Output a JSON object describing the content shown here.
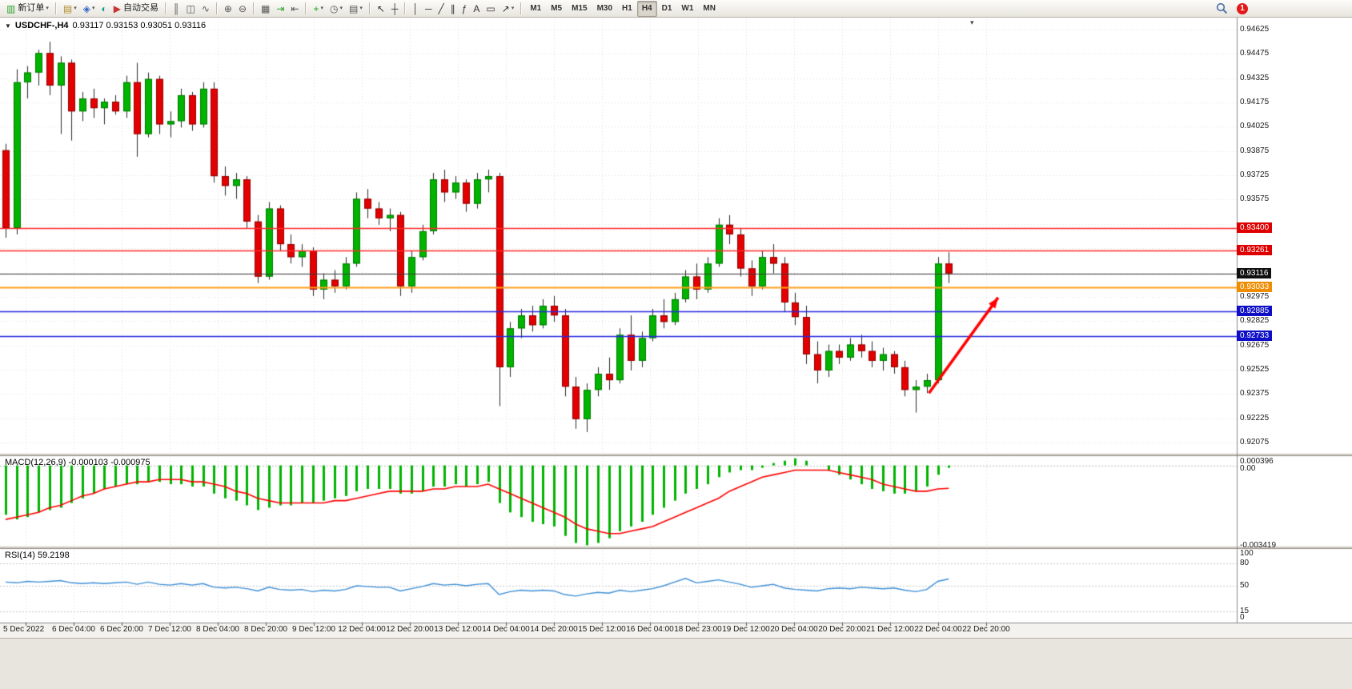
{
  "toolbar": {
    "groups": [
      [
        {
          "name": "new-order",
          "glyph": "▥",
          "color": "#2fa32f",
          "label": "新订单",
          "dropdown": true
        }
      ],
      [
        {
          "name": "new-chart",
          "glyph": "▤",
          "color": "#b08a28",
          "dropdown": true
        },
        {
          "name": "profiles",
          "glyph": "◈",
          "color": "#3565c8",
          "dropdown": true
        },
        {
          "name": "data-window",
          "glyph": "◐",
          "color": "#1f9898"
        },
        {
          "name": "autotrading",
          "glyph": "▶",
          "color": "#c83232",
          "label": "自动交易"
        }
      ],
      [
        {
          "name": "bar-chart",
          "glyph": "║",
          "color": "#555555"
        },
        {
          "name": "candlestick-chart",
          "glyph": "◫",
          "color": "#555555"
        },
        {
          "name": "line-chart",
          "glyph": "∿",
          "color": "#555555"
        }
      ],
      [
        {
          "name": "zoom-in",
          "glyph": "⊕",
          "color": "#555555"
        },
        {
          "name": "zoom-out",
          "glyph": "⊖",
          "color": "#555555"
        }
      ],
      [
        {
          "name": "tile-windows",
          "glyph": "▦",
          "color": "#555555"
        },
        {
          "name": "auto-scroll",
          "glyph": "⇥",
          "color": "#2fa32f"
        },
        {
          "name": "chart-shift",
          "glyph": "⇤",
          "color": "#555555"
        }
      ],
      [
        {
          "name": "indicators",
          "glyph": "+",
          "color": "#18a018",
          "dropdown": true
        },
        {
          "name": "periods",
          "glyph": "◷",
          "color": "#555555",
          "dropdown": true
        },
        {
          "name": "templates",
          "glyph": "▤",
          "color": "#555555",
          "dropdown": true
        }
      ],
      [
        {
          "name": "cursor",
          "glyph": "↖",
          "color": "#333333"
        },
        {
          "name": "crosshair",
          "glyph": "┼",
          "color": "#333333"
        }
      ],
      [
        {
          "name": "vertical-line",
          "glyph": "│",
          "color": "#333333"
        },
        {
          "name": "horizontal-line",
          "glyph": "─",
          "color": "#333333"
        },
        {
          "name": "trendline",
          "glyph": "╱",
          "color": "#333333"
        },
        {
          "name": "equidistant-channel",
          "glyph": "∥",
          "color": "#333333"
        },
        {
          "name": "fibonacci",
          "glyph": "ƒ",
          "color": "#333333"
        },
        {
          "name": "text",
          "glyph": "A",
          "color": "#333333"
        },
        {
          "name": "text-label",
          "glyph": "▭",
          "color": "#333333"
        },
        {
          "name": "arrows",
          "glyph": "↗",
          "color": "#333333",
          "dropdown": true
        }
      ]
    ],
    "timeframes": {
      "items": [
        "M1",
        "M5",
        "M15",
        "M30",
        "H1",
        "H4",
        "D1",
        "W1",
        "MN"
      ],
      "active": "H4"
    },
    "right": {
      "badge_count": "1"
    }
  },
  "chart": {
    "collapse_glyph": "▼",
    "symbol": "USDCHF-,H4",
    "ohlc": "0.93117 0.93153 0.93051 0.93116",
    "shift_marker_glyph": "▾"
  },
  "indicators": {
    "macd": {
      "label": "MACD(12,26,9) -0.000103 -0.000975"
    },
    "rsi": {
      "label": "RSI(14) 59.2198"
    }
  },
  "chart_data": {
    "type": "candlestick",
    "symbol": "USDCHF",
    "timeframe": "H4",
    "ohlc_current": {
      "open": 0.93117,
      "high": 0.93153,
      "low": 0.93051,
      "close": 0.93116
    },
    "price_ticks": [
      "0.94625",
      "0.94475",
      "0.94325",
      "0.94175",
      "0.94025",
      "0.93875",
      "0.93725",
      "0.93575",
      "0.93425",
      "0.93275",
      "0.93125",
      "0.92975",
      "0.92825",
      "0.92675",
      "0.92525",
      "0.92375",
      "0.92225",
      "0.92075"
    ],
    "candles": [
      [
        0.9388,
        0.9392,
        0.9334,
        0.934
      ],
      [
        0.934,
        0.9438,
        0.9336,
        0.943
      ],
      [
        0.943,
        0.944,
        0.942,
        0.9436
      ],
      [
        0.9436,
        0.945,
        0.9428,
        0.9448
      ],
      [
        0.9448,
        0.9455,
        0.9422,
        0.9428
      ],
      [
        0.9428,
        0.9446,
        0.9398,
        0.9442
      ],
      [
        0.9442,
        0.9444,
        0.9394,
        0.9412
      ],
      [
        0.9412,
        0.9424,
        0.9406,
        0.942
      ],
      [
        0.942,
        0.9426,
        0.9408,
        0.9414
      ],
      [
        0.9414,
        0.942,
        0.9404,
        0.9418
      ],
      [
        0.9418,
        0.9422,
        0.941,
        0.9412
      ],
      [
        0.9412,
        0.9434,
        0.9408,
        0.943
      ],
      [
        0.943,
        0.9442,
        0.9384,
        0.9398
      ],
      [
        0.9398,
        0.9436,
        0.9396,
        0.9432
      ],
      [
        0.9432,
        0.9434,
        0.9398,
        0.9404
      ],
      [
        0.9404,
        0.9412,
        0.9396,
        0.9406
      ],
      [
        0.9406,
        0.9426,
        0.9402,
        0.9422
      ],
      [
        0.9422,
        0.9424,
        0.94,
        0.9404
      ],
      [
        0.9404,
        0.943,
        0.9402,
        0.9426
      ],
      [
        0.9426,
        0.943,
        0.9368,
        0.9372
      ],
      [
        0.9372,
        0.9378,
        0.936,
        0.9366
      ],
      [
        0.9366,
        0.9374,
        0.9358,
        0.937
      ],
      [
        0.937,
        0.9372,
        0.934,
        0.9344
      ],
      [
        0.9344,
        0.9348,
        0.9306,
        0.931
      ],
      [
        0.931,
        0.9356,
        0.9308,
        0.9352
      ],
      [
        0.9352,
        0.9354,
        0.9326,
        0.933
      ],
      [
        0.933,
        0.9336,
        0.9318,
        0.9322
      ],
      [
        0.9322,
        0.933,
        0.9316,
        0.9326
      ],
      [
        0.9326,
        0.9328,
        0.9298,
        0.9302
      ],
      [
        0.9302,
        0.9312,
        0.9296,
        0.9308
      ],
      [
        0.9308,
        0.9314,
        0.93,
        0.9304
      ],
      [
        0.9304,
        0.9322,
        0.9302,
        0.9318
      ],
      [
        0.9318,
        0.9362,
        0.9316,
        0.9358
      ],
      [
        0.9358,
        0.9364,
        0.9346,
        0.9352
      ],
      [
        0.9352,
        0.9356,
        0.9342,
        0.9346
      ],
      [
        0.9346,
        0.9352,
        0.9338,
        0.9348
      ],
      [
        0.9348,
        0.935,
        0.9298,
        0.9304
      ],
      [
        0.9304,
        0.9326,
        0.93,
        0.9322
      ],
      [
        0.9322,
        0.9342,
        0.932,
        0.9338
      ],
      [
        0.9338,
        0.9374,
        0.9336,
        0.937
      ],
      [
        0.937,
        0.9376,
        0.9356,
        0.9362
      ],
      [
        0.9362,
        0.9372,
        0.9358,
        0.9368
      ],
      [
        0.9368,
        0.937,
        0.935,
        0.9355
      ],
      [
        0.9355,
        0.9374,
        0.9352,
        0.937
      ],
      [
        0.937,
        0.9376,
        0.9362,
        0.9372
      ],
      [
        0.9372,
        0.9374,
        0.923,
        0.9254
      ],
      [
        0.9254,
        0.9282,
        0.9248,
        0.9278
      ],
      [
        0.9278,
        0.929,
        0.9272,
        0.9286
      ],
      [
        0.9286,
        0.9292,
        0.9276,
        0.928
      ],
      [
        0.928,
        0.9296,
        0.9278,
        0.9292
      ],
      [
        0.9292,
        0.9298,
        0.9282,
        0.9286
      ],
      [
        0.9286,
        0.929,
        0.9236,
        0.9242
      ],
      [
        0.9242,
        0.9248,
        0.9216,
        0.9222
      ],
      [
        0.9222,
        0.9244,
        0.9214,
        0.924
      ],
      [
        0.924,
        0.9254,
        0.9236,
        0.925
      ],
      [
        0.925,
        0.926,
        0.924,
        0.9246
      ],
      [
        0.9246,
        0.9278,
        0.9244,
        0.9274
      ],
      [
        0.9274,
        0.9286,
        0.9252,
        0.9258
      ],
      [
        0.9258,
        0.9276,
        0.9254,
        0.9272
      ],
      [
        0.9272,
        0.929,
        0.927,
        0.9286
      ],
      [
        0.9286,
        0.9296,
        0.9278,
        0.9282
      ],
      [
        0.9282,
        0.93,
        0.928,
        0.9296
      ],
      [
        0.9296,
        0.9314,
        0.9294,
        0.931
      ],
      [
        0.931,
        0.9318,
        0.9296,
        0.9302
      ],
      [
        0.9302,
        0.9322,
        0.93,
        0.9318
      ],
      [
        0.9318,
        0.9346,
        0.9316,
        0.9342
      ],
      [
        0.9342,
        0.9348,
        0.933,
        0.9336
      ],
      [
        0.9336,
        0.934,
        0.931,
        0.9315
      ],
      [
        0.9315,
        0.932,
        0.9298,
        0.9304
      ],
      [
        0.9304,
        0.9326,
        0.9302,
        0.9322
      ],
      [
        0.9322,
        0.933,
        0.9312,
        0.9318
      ],
      [
        0.9318,
        0.9322,
        0.9288,
        0.9294
      ],
      [
        0.9294,
        0.93,
        0.928,
        0.9285
      ],
      [
        0.9285,
        0.9292,
        0.9256,
        0.9262
      ],
      [
        0.9262,
        0.927,
        0.9244,
        0.9252
      ],
      [
        0.9252,
        0.9268,
        0.9248,
        0.9264
      ],
      [
        0.9264,
        0.9268,
        0.9256,
        0.926
      ],
      [
        0.926,
        0.9272,
        0.9258,
        0.9268
      ],
      [
        0.9268,
        0.9274,
        0.926,
        0.9264
      ],
      [
        0.9264,
        0.927,
        0.9254,
        0.9258
      ],
      [
        0.9258,
        0.9266,
        0.9252,
        0.9262
      ],
      [
        0.9262,
        0.9264,
        0.925,
        0.9254
      ],
      [
        0.9254,
        0.9258,
        0.9236,
        0.924
      ],
      [
        0.924,
        0.9246,
        0.9226,
        0.9242
      ],
      [
        0.9242,
        0.925,
        0.9238,
        0.9246
      ],
      [
        0.9246,
        0.9322,
        0.9244,
        0.9318
      ],
      [
        0.9318,
        0.9325,
        0.9306,
        0.9312
      ]
    ],
    "hlines": [
      {
        "price": 0.934,
        "label": "0.93400",
        "color": "#FF2A2A",
        "tag_bg": "#DE0000",
        "width": 1.4
      },
      {
        "price": 0.93261,
        "label": "0.93261",
        "color": "#FF2A2A",
        "tag_bg": "#DE0000",
        "width": 1.4
      },
      {
        "price": 0.93116,
        "label": "0.93116",
        "color": "#3C3C3C",
        "tag_bg": "#101010",
        "width": 1.1
      },
      {
        "price": 0.93033,
        "label": "0.93033",
        "color": "#FFA01E",
        "tag_bg": "#F08C00",
        "width": 2
      },
      {
        "price": 0.92885,
        "label": "0.92885",
        "color": "#2828E0",
        "tag_bg": "#0F0FC8",
        "width": 1.4
      },
      {
        "price": 0.92733,
        "label": "0.92733",
        "color": "#2828E0",
        "tag_bg": "#0F0FC8",
        "width": 1.4
      }
    ],
    "arrow": {
      "from": {
        "index": 84.2,
        "price": 0.9238
      },
      "to": {
        "index": 90.5,
        "price": 0.9297
      },
      "color": "#FF0000"
    },
    "colors": {
      "up": "#00B400",
      "up_edge": "#007800",
      "down": "#E40000",
      "down_edge": "#8F0000",
      "wick": "#2A2A2A",
      "macd_hist": "#00B400",
      "macd_signal": "#FF0000",
      "rsi_line": "#3E8FD6"
    },
    "macd": {
      "values": [
        -0.0021,
        -0.0023,
        -0.0022,
        -0.002,
        -0.0019,
        -0.0018,
        -0.0016,
        -0.0014,
        -0.0012,
        -0.001,
        -0.0009,
        -0.0008,
        -0.0008,
        -0.0007,
        -0.0007,
        -0.0008,
        -0.0008,
        -0.0009,
        -0.0009,
        -0.0012,
        -0.0014,
        -0.0015,
        -0.0017,
        -0.0019,
        -0.0018,
        -0.0017,
        -0.0017,
        -0.0016,
        -0.0016,
        -0.0015,
        -0.0014,
        -0.0013,
        -0.0011,
        -0.001,
        -0.001,
        -0.001,
        -0.0012,
        -0.0012,
        -0.0011,
        -0.0009,
        -0.0009,
        -0.0008,
        -0.0009,
        -0.0008,
        -0.0007,
        -0.0016,
        -0.002,
        -0.0022,
        -0.0024,
        -0.0025,
        -0.0026,
        -0.003,
        -0.0033,
        -0.0034,
        -0.0033,
        -0.0031,
        -0.0028,
        -0.0026,
        -0.0024,
        -0.0021,
        -0.0018,
        -0.0015,
        -0.0012,
        -0.001,
        -0.0008,
        -0.0005,
        -0.0003,
        -0.0002,
        -0.0002,
        -0.0001,
        0.0001,
        0.0002,
        0.0003,
        0.0002,
        0.0,
        -0.0002,
        -0.0004,
        -0.0006,
        -0.0008,
        -0.001,
        -0.0011,
        -0.0012,
        -0.0012,
        -0.0011,
        -0.0009,
        -0.0004,
        -0.000103
      ],
      "signal": [
        -0.0023,
        -0.0022,
        -0.0021,
        -0.002,
        -0.0018,
        -0.0017,
        -0.0015,
        -0.0013,
        -0.0012,
        -0.001,
        -0.0009,
        -0.0008,
        -0.0007,
        -0.0007,
        -0.0006,
        -0.0006,
        -0.0006,
        -0.0007,
        -0.0007,
        -0.0008,
        -0.0009,
        -0.0011,
        -0.0012,
        -0.0014,
        -0.0015,
        -0.0016,
        -0.0016,
        -0.0016,
        -0.0016,
        -0.0016,
        -0.0015,
        -0.0015,
        -0.0014,
        -0.0013,
        -0.0012,
        -0.0011,
        -0.0011,
        -0.0011,
        -0.0011,
        -0.001,
        -0.001,
        -0.0009,
        -0.0009,
        -0.0009,
        -0.0008,
        -0.001,
        -0.0012,
        -0.0014,
        -0.0016,
        -0.0018,
        -0.002,
        -0.0022,
        -0.0025,
        -0.0027,
        -0.0028,
        -0.0029,
        -0.0029,
        -0.0028,
        -0.0027,
        -0.0026,
        -0.0024,
        -0.0022,
        -0.002,
        -0.0018,
        -0.0016,
        -0.0014,
        -0.0011,
        -0.0009,
        -0.0007,
        -0.0005,
        -0.0004,
        -0.0003,
        -0.0002,
        -0.0002,
        -0.0002,
        -0.0002,
        -0.0003,
        -0.0004,
        -0.0005,
        -0.0006,
        -0.0008,
        -0.0009,
        -0.001,
        -0.0011,
        -0.0011,
        -0.001,
        -0.000975
      ],
      "axis": [
        {
          "v": 0.000396,
          "label": "0.000396"
        },
        {
          "v": 0,
          "label": "0.00"
        },
        {
          "v": -0.003419,
          "label": "-0.003419"
        }
      ],
      "range": [
        -0.003419,
        0.000396
      ]
    },
    "rsi": {
      "values": [
        55,
        54,
        56,
        55,
        56,
        57,
        54,
        53,
        54,
        53,
        54,
        55,
        52,
        55,
        52,
        51,
        53,
        51,
        53,
        48,
        47,
        48,
        46,
        43,
        48,
        45,
        44,
        45,
        42,
        44,
        43,
        45,
        50,
        49,
        48,
        48,
        43,
        46,
        49,
        53,
        51,
        52,
        50,
        52,
        53,
        38,
        42,
        44,
        43,
        44,
        43,
        38,
        36,
        39,
        41,
        40,
        44,
        42,
        44,
        46,
        50,
        55,
        60,
        54,
        56,
        58,
        55,
        52,
        48,
        50,
        52,
        47,
        45,
        44,
        43,
        46,
        47,
        46,
        48,
        47,
        46,
        47,
        44,
        42,
        45,
        56,
        59.2
      ],
      "levels": [
        {
          "v": 100,
          "label": "100"
        },
        {
          "v": 80,
          "label": "80"
        },
        {
          "v": 50,
          "label": "50"
        },
        {
          "v": 15,
          "label": "15"
        },
        {
          "v": 0,
          "label": "0"
        }
      ],
      "range": [
        0,
        100
      ]
    },
    "time_labels": [
      "5 Dec 2022",
      "6 Dec 04:00",
      "6 Dec 20:00",
      "7 Dec 12:00",
      "8 Dec 04:00",
      "8 Dec 20:00",
      "9 Dec 12:00",
      "12 Dec 04:00",
      "12 Dec 20:00",
      "13 Dec 12:00",
      "14 Dec 04:00",
      "14 Dec 20:00",
      "15 Dec 12:00",
      "16 Dec 04:00",
      "18 Dec 23:00",
      "19 Dec 12:00",
      "20 Dec 04:00",
      "20 Dec 20:00",
      "21 Dec 12:00",
      "22 Dec 04:00",
      "22 Dec 20:00"
    ]
  }
}
